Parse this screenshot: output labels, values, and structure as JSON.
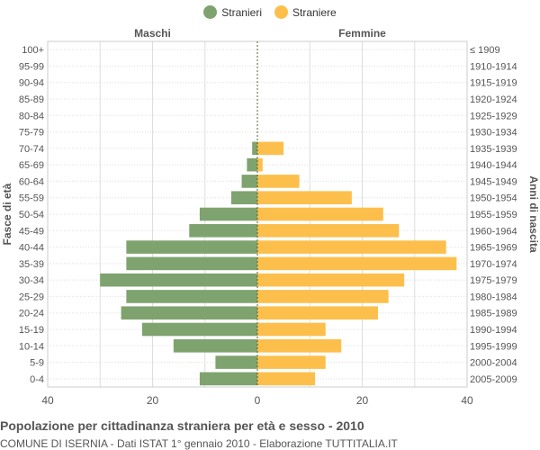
{
  "legend": {
    "male_label": "Stranieri",
    "female_label": "Straniere"
  },
  "colors": {
    "male": "#7fa36f",
    "female": "#fdbf4b",
    "center_line": "#5c5c2e",
    "grid": "#dddddd",
    "text": "#555555"
  },
  "chart_data": {
    "type": "bar",
    "orientation": "horizontal-population-pyramid",
    "title": "Popolazione per cittadinanza straniera per età e sesso - 2010",
    "subtitle": "COMUNE DI ISERNIA - Dati ISTAT 1° gennaio 2010 - Elaborazione TUTTITALIA.IT",
    "left_header": "Maschi",
    "right_header": "Femmine",
    "ylabel_left": "Fasce di età",
    "ylabel_right": "Anni di nascita",
    "xlim": [
      -40,
      40
    ],
    "x_ticks": [
      {
        "value": -40,
        "label": "40"
      },
      {
        "value": -20,
        "label": "20"
      },
      {
        "value": 0,
        "label": "0"
      },
      {
        "value": 20,
        "label": "20"
      },
      {
        "value": 40,
        "label": "40"
      }
    ],
    "grid": true,
    "legend_position": "top-center",
    "age_groups": [
      "100+",
      "95-99",
      "90-94",
      "85-89",
      "80-84",
      "75-79",
      "70-74",
      "65-69",
      "60-64",
      "55-59",
      "50-54",
      "45-49",
      "40-44",
      "35-39",
      "30-34",
      "25-29",
      "20-24",
      "15-19",
      "10-14",
      "5-9",
      "0-4"
    ],
    "birth_years": [
      "≤ 1909",
      "1910-1914",
      "1915-1919",
      "1920-1924",
      "1925-1929",
      "1930-1934",
      "1935-1939",
      "1940-1944",
      "1945-1949",
      "1950-1954",
      "1955-1959",
      "1960-1964",
      "1965-1969",
      "1970-1974",
      "1975-1979",
      "1980-1984",
      "1985-1989",
      "1990-1994",
      "1995-1999",
      "2000-2004",
      "2005-2009"
    ],
    "series": [
      {
        "name": "Stranieri",
        "values": [
          0,
          0,
          0,
          0,
          0,
          0,
          1,
          2,
          3,
          5,
          11,
          13,
          25,
          25,
          30,
          25,
          26,
          22,
          16,
          8,
          11
        ]
      },
      {
        "name": "Straniere",
        "values": [
          0,
          0,
          0,
          0,
          0,
          0,
          5,
          1,
          8,
          18,
          24,
          27,
          36,
          38,
          28,
          25,
          23,
          13,
          16,
          13,
          11
        ]
      }
    ]
  }
}
